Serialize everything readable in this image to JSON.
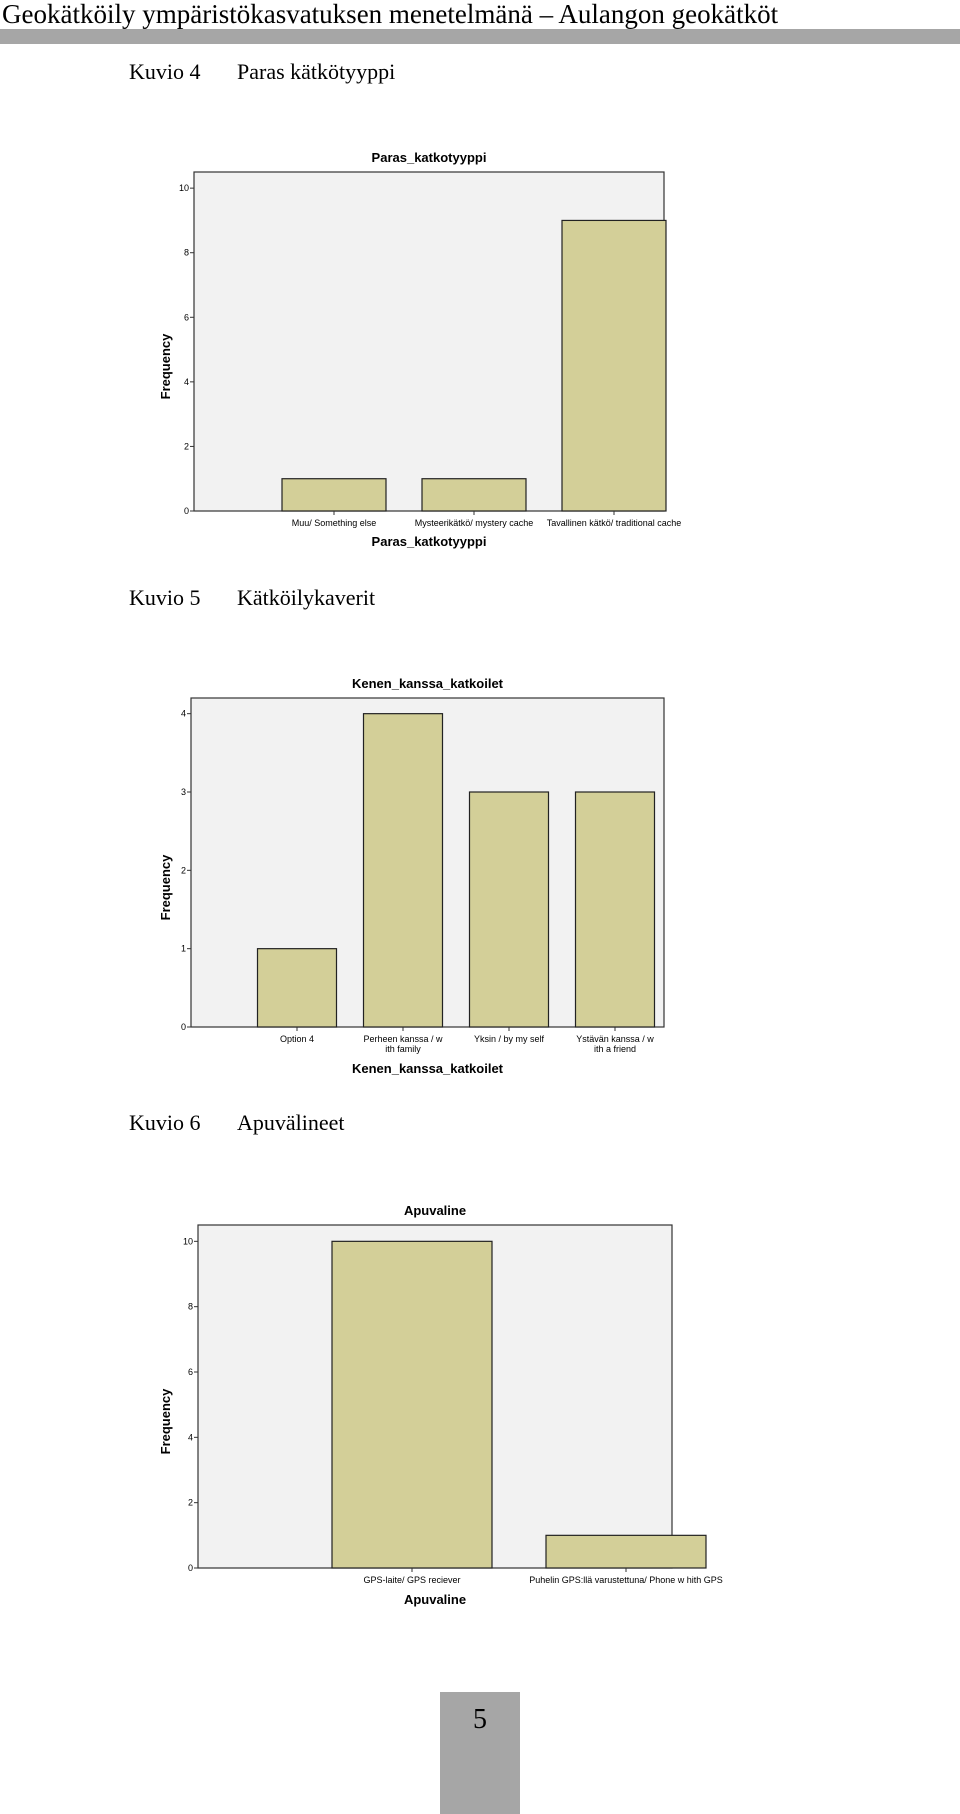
{
  "header": {
    "title": "Geokätköily ympäristökasvatuksen menetelmänä – Aulangon geokätköt"
  },
  "figures": [
    {
      "number": "Kuvio 4",
      "title": "Paras kätkötyyppi"
    },
    {
      "number": "Kuvio 5",
      "title": "Kätköilykaverit"
    },
    {
      "number": "Kuvio 6",
      "title": "Apuvälineet"
    }
  ],
  "colors": {
    "bar": "#d3cf98",
    "plot_bg": "#f2f2f2",
    "header_rule": "#a6a6a6"
  },
  "chart_data": [
    {
      "type": "bar",
      "title": "Paras_katkotyyppi",
      "xlabel": "Paras_katkotyyppi",
      "ylabel": "Frequency",
      "categories": [
        "Muu/ Something else",
        "Mysteerikätkö/ mystery cache",
        "Tavallinen kätkö/ traditional cache"
      ],
      "values": [
        1,
        1,
        9
      ],
      "yticks": [
        "0",
        "2",
        "4",
        "6",
        "8",
        "10"
      ],
      "ylim": [
        0,
        10.5
      ]
    },
    {
      "type": "bar",
      "title": "Kenen_kanssa_katkoilet",
      "xlabel": "Kenen_kanssa_katkoilet",
      "ylabel": "Frequency",
      "categories": [
        "Option 4",
        "Perheen kanssa / w ith family",
        "Yksin / by my self",
        "Ystävän kanssa / w ith a friend"
      ],
      "values": [
        1,
        4,
        3,
        3
      ],
      "yticks": [
        "0",
        "1",
        "2",
        "3",
        "4"
      ],
      "ylim": [
        0,
        4.2
      ]
    },
    {
      "type": "bar",
      "title": "Apuvaline",
      "xlabel": "Apuvaline",
      "ylabel": "Frequency",
      "categories": [
        "GPS-laite/ GPS reciever",
        "Puhelin GPS:llä varustettuna/ Phone w hith GPS"
      ],
      "values": [
        10,
        1
      ],
      "yticks": [
        "0",
        "2",
        "4",
        "6",
        "8",
        "10"
      ],
      "ylim": [
        0,
        10.5
      ]
    }
  ],
  "footer": {
    "page_number": "5"
  }
}
